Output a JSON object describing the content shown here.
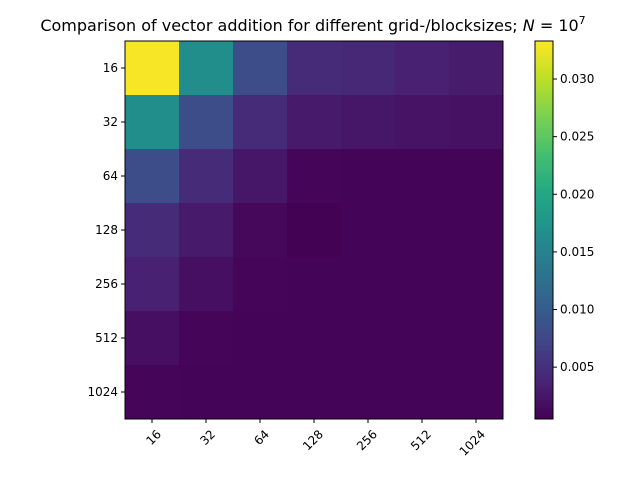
{
  "chart_data": {
    "type": "heatmap",
    "title": "Comparison of vector addition for different grid-/blocksizes; N = 10^7",
    "title_parts": {
      "text": "Comparison of vector addition for different grid-/blocksizes; ",
      "symbol": "N",
      "equals": " = 10",
      "exponent": "7"
    },
    "xlabel": "",
    "ylabel": "",
    "x_categories": [
      "16",
      "32",
      "64",
      "128",
      "256",
      "512",
      "1024"
    ],
    "y_categories": [
      "16",
      "32",
      "64",
      "128",
      "256",
      "512",
      "1024"
    ],
    "values": [
      [
        0.033,
        0.0165,
        0.0082,
        0.0045,
        0.0042,
        0.0035,
        0.003
      ],
      [
        0.0165,
        0.0082,
        0.0045,
        0.0028,
        0.0025,
        0.0022,
        0.002
      ],
      [
        0.0082,
        0.0045,
        0.0025,
        0.001,
        0.0009,
        0.0008,
        0.0008
      ],
      [
        0.0045,
        0.0028,
        0.0012,
        0.0006,
        0.0008,
        0.0008,
        0.0008
      ],
      [
        0.0035,
        0.0018,
        0.001,
        0.0008,
        0.0008,
        0.0008,
        0.0008
      ],
      [
        0.0018,
        0.001,
        0.0008,
        0.0008,
        0.0008,
        0.0008,
        0.0008
      ],
      [
        0.001,
        0.0008,
        0.0008,
        0.0008,
        0.0008,
        0.0008,
        0.0008
      ]
    ],
    "colormap": "viridis",
    "colorbar": {
      "range": [
        0.0005,
        0.0333
      ],
      "ticks": [
        0.005,
        0.01,
        0.015,
        0.02,
        0.025,
        0.03
      ],
      "tick_labels": [
        "0.005",
        "0.010",
        "0.015",
        "0.020",
        "0.025",
        "0.030"
      ],
      "placement": "right"
    },
    "x_tick_rotation_deg": 45,
    "grid": false
  }
}
